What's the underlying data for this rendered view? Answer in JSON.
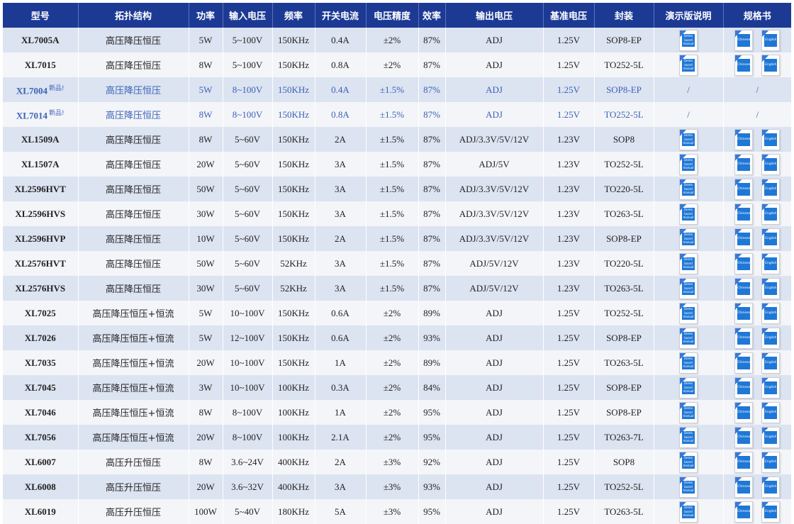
{
  "table": {
    "headers": [
      "型号",
      "拓扑结构",
      "功率",
      "输入电压",
      "频率",
      "开关电流",
      "电压精度",
      "效率",
      "输出电压",
      "基准电压",
      "封装",
      "演示版说明",
      "规格书"
    ],
    "icons": {
      "demo_lines": [
        "Demo",
        "board",
        "manual"
      ],
      "chinese": "Chinese",
      "english": "English",
      "unavailable": "/"
    },
    "colors": {
      "header_bg": "#1c3a94",
      "row_light": "#f4f5f8",
      "row_alt": "#dce3f1",
      "new_product_text": "#3b62b8",
      "doc_blue": "#1f77d6"
    },
    "rows": [
      {
        "model": "XL7005A",
        "badge": "",
        "topology": "高压降压恒压",
        "power": "5W",
        "vin": "5~100V",
        "freq": "150KHz",
        "isw": "0.4A",
        "accuracy": "±2%",
        "eff": "87%",
        "vout": "ADJ",
        "vref": "1.25V",
        "pkg": "SOP8-EP",
        "docs": true,
        "new": false
      },
      {
        "model": "XL7015",
        "badge": "",
        "topology": "高压降压恒压",
        "power": "8W",
        "vin": "5~100V",
        "freq": "150KHz",
        "isw": "0.8A",
        "accuracy": "±2%",
        "eff": "87%",
        "vout": "ADJ",
        "vref": "1.25V",
        "pkg": "TO252-5L",
        "docs": true,
        "new": false
      },
      {
        "model": "XL7004",
        "badge": "新品!",
        "topology": "高压降压恒压",
        "power": "5W",
        "vin": "8~100V",
        "freq": "150KHz",
        "isw": "0.4A",
        "accuracy": "±1.5%",
        "eff": "87%",
        "vout": "ADJ",
        "vref": "1.25V",
        "pkg": "SOP8-EP",
        "docs": false,
        "new": true
      },
      {
        "model": "XL7014",
        "badge": "新品!",
        "topology": "高压降压恒压",
        "power": "8W",
        "vin": "8~100V",
        "freq": "150KHz",
        "isw": "0.8A",
        "accuracy": "±1.5%",
        "eff": "87%",
        "vout": "ADJ",
        "vref": "1.25V",
        "pkg": "TO252-5L",
        "docs": false,
        "new": true
      },
      {
        "model": "XL1509A",
        "badge": "",
        "topology": "高压降压恒压",
        "power": "8W",
        "vin": "5~60V",
        "freq": "150KHz",
        "isw": "2A",
        "accuracy": "±1.5%",
        "eff": "87%",
        "vout": "ADJ/3.3V/5V/12V",
        "vref": "1.23V",
        "pkg": "SOP8",
        "docs": true,
        "new": false
      },
      {
        "model": "XL1507A",
        "badge": "",
        "topology": "高压降压恒压",
        "power": "20W",
        "vin": "5~60V",
        "freq": "150KHz",
        "isw": "3A",
        "accuracy": "±1.5%",
        "eff": "87%",
        "vout": "ADJ/5V",
        "vref": "1.23V",
        "pkg": "TO252-5L",
        "docs": true,
        "new": false
      },
      {
        "model": "XL2596HVT",
        "badge": "",
        "topology": "高压降压恒压",
        "power": "50W",
        "vin": "5~60V",
        "freq": "150KHz",
        "isw": "3A",
        "accuracy": "±1.5%",
        "eff": "87%",
        "vout": "ADJ/3.3V/5V/12V",
        "vref": "1.23V",
        "pkg": "TO220-5L",
        "docs": true,
        "new": false
      },
      {
        "model": "XL2596HVS",
        "badge": "",
        "topology": "高压降压恒压",
        "power": "30W",
        "vin": "5~60V",
        "freq": "150KHz",
        "isw": "3A",
        "accuracy": "±1.5%",
        "eff": "87%",
        "vout": "ADJ/3.3V/5V/12V",
        "vref": "1.23V",
        "pkg": "TO263-5L",
        "docs": true,
        "new": false
      },
      {
        "model": "XL2596HVP",
        "badge": "",
        "topology": "高压降压恒压",
        "power": "10W",
        "vin": "5~60V",
        "freq": "150KHz",
        "isw": "2A",
        "accuracy": "±1.5%",
        "eff": "87%",
        "vout": "ADJ/3.3V/5V/12V",
        "vref": "1.23V",
        "pkg": "SOP8-EP",
        "docs": true,
        "new": false
      },
      {
        "model": "XL2576HVT",
        "badge": "",
        "topology": "高压降压恒压",
        "power": "50W",
        "vin": "5~60V",
        "freq": "52KHz",
        "isw": "3A",
        "accuracy": "±1.5%",
        "eff": "87%",
        "vout": "ADJ/5V/12V",
        "vref": "1.23V",
        "pkg": "TO220-5L",
        "docs": true,
        "new": false
      },
      {
        "model": "XL2576HVS",
        "badge": "",
        "topology": "高压降压恒压",
        "power": "30W",
        "vin": "5~60V",
        "freq": "52KHz",
        "isw": "3A",
        "accuracy": "±1.5%",
        "eff": "87%",
        "vout": "ADJ/5V/12V",
        "vref": "1.23V",
        "pkg": "TO263-5L",
        "docs": true,
        "new": false
      },
      {
        "model": "XL7025",
        "badge": "",
        "topology": "高压降压恒压+恒流",
        "power": "5W",
        "vin": "10~100V",
        "freq": "150KHz",
        "isw": "0.6A",
        "accuracy": "±2%",
        "eff": "89%",
        "vout": "ADJ",
        "vref": "1.25V",
        "pkg": "TO252-5L",
        "docs": true,
        "new": false
      },
      {
        "model": "XL7026",
        "badge": "",
        "topology": "高压降压恒压+恒流",
        "power": "5W",
        "vin": "12~100V",
        "freq": "150KHz",
        "isw": "0.6A",
        "accuracy": "±2%",
        "eff": "93%",
        "vout": "ADJ",
        "vref": "1.25V",
        "pkg": "SOP8-EP",
        "docs": true,
        "new": false
      },
      {
        "model": "XL7035",
        "badge": "",
        "topology": "高压降压恒压+恒流",
        "power": "20W",
        "vin": "10~100V",
        "freq": "150KHz",
        "isw": "1A",
        "accuracy": "±2%",
        "eff": "89%",
        "vout": "ADJ",
        "vref": "1.25V",
        "pkg": "TO263-5L",
        "docs": true,
        "new": false
      },
      {
        "model": "XL7045",
        "badge": "",
        "topology": "高压降压恒压+恒流",
        "power": "3W",
        "vin": "10~100V",
        "freq": "100KHz",
        "isw": "0.3A",
        "accuracy": "±2%",
        "eff": "84%",
        "vout": "ADJ",
        "vref": "1.25V",
        "pkg": "SOP8-EP",
        "docs": true,
        "new": false
      },
      {
        "model": "XL7046",
        "badge": "",
        "topology": "高压降压恒压+恒流",
        "power": "8W",
        "vin": "8~100V",
        "freq": "100KHz",
        "isw": "1A",
        "accuracy": "±2%",
        "eff": "95%",
        "vout": "ADJ",
        "vref": "1.25V",
        "pkg": "SOP8-EP",
        "docs": true,
        "new": false
      },
      {
        "model": "XL7056",
        "badge": "",
        "topology": "高压降压恒压+恒流",
        "power": "20W",
        "vin": "8~100V",
        "freq": "100KHz",
        "isw": "2.1A",
        "accuracy": "±2%",
        "eff": "95%",
        "vout": "ADJ",
        "vref": "1.25V",
        "pkg": "TO263-7L",
        "docs": true,
        "new": false
      },
      {
        "model": "XL6007",
        "badge": "",
        "topology": "高压升压恒压",
        "power": "8W",
        "vin": "3.6~24V",
        "freq": "400KHz",
        "isw": "2A",
        "accuracy": "±3%",
        "eff": "92%",
        "vout": "ADJ",
        "vref": "1.25V",
        "pkg": "SOP8",
        "docs": true,
        "new": false
      },
      {
        "model": "XL6008",
        "badge": "",
        "topology": "高压升压恒压",
        "power": "20W",
        "vin": "3.6~32V",
        "freq": "400KHz",
        "isw": "3A",
        "accuracy": "±3%",
        "eff": "93%",
        "vout": "ADJ",
        "vref": "1.25V",
        "pkg": "TO252-5L",
        "docs": true,
        "new": false
      },
      {
        "model": "XL6019",
        "badge": "",
        "topology": "高压升压恒压",
        "power": "100W",
        "vin": "5~40V",
        "freq": "180KHz",
        "isw": "5A",
        "accuracy": "±3%",
        "eff": "95%",
        "vout": "ADJ",
        "vref": "1.25V",
        "pkg": "TO263-5L",
        "docs": true,
        "new": false
      }
    ]
  }
}
